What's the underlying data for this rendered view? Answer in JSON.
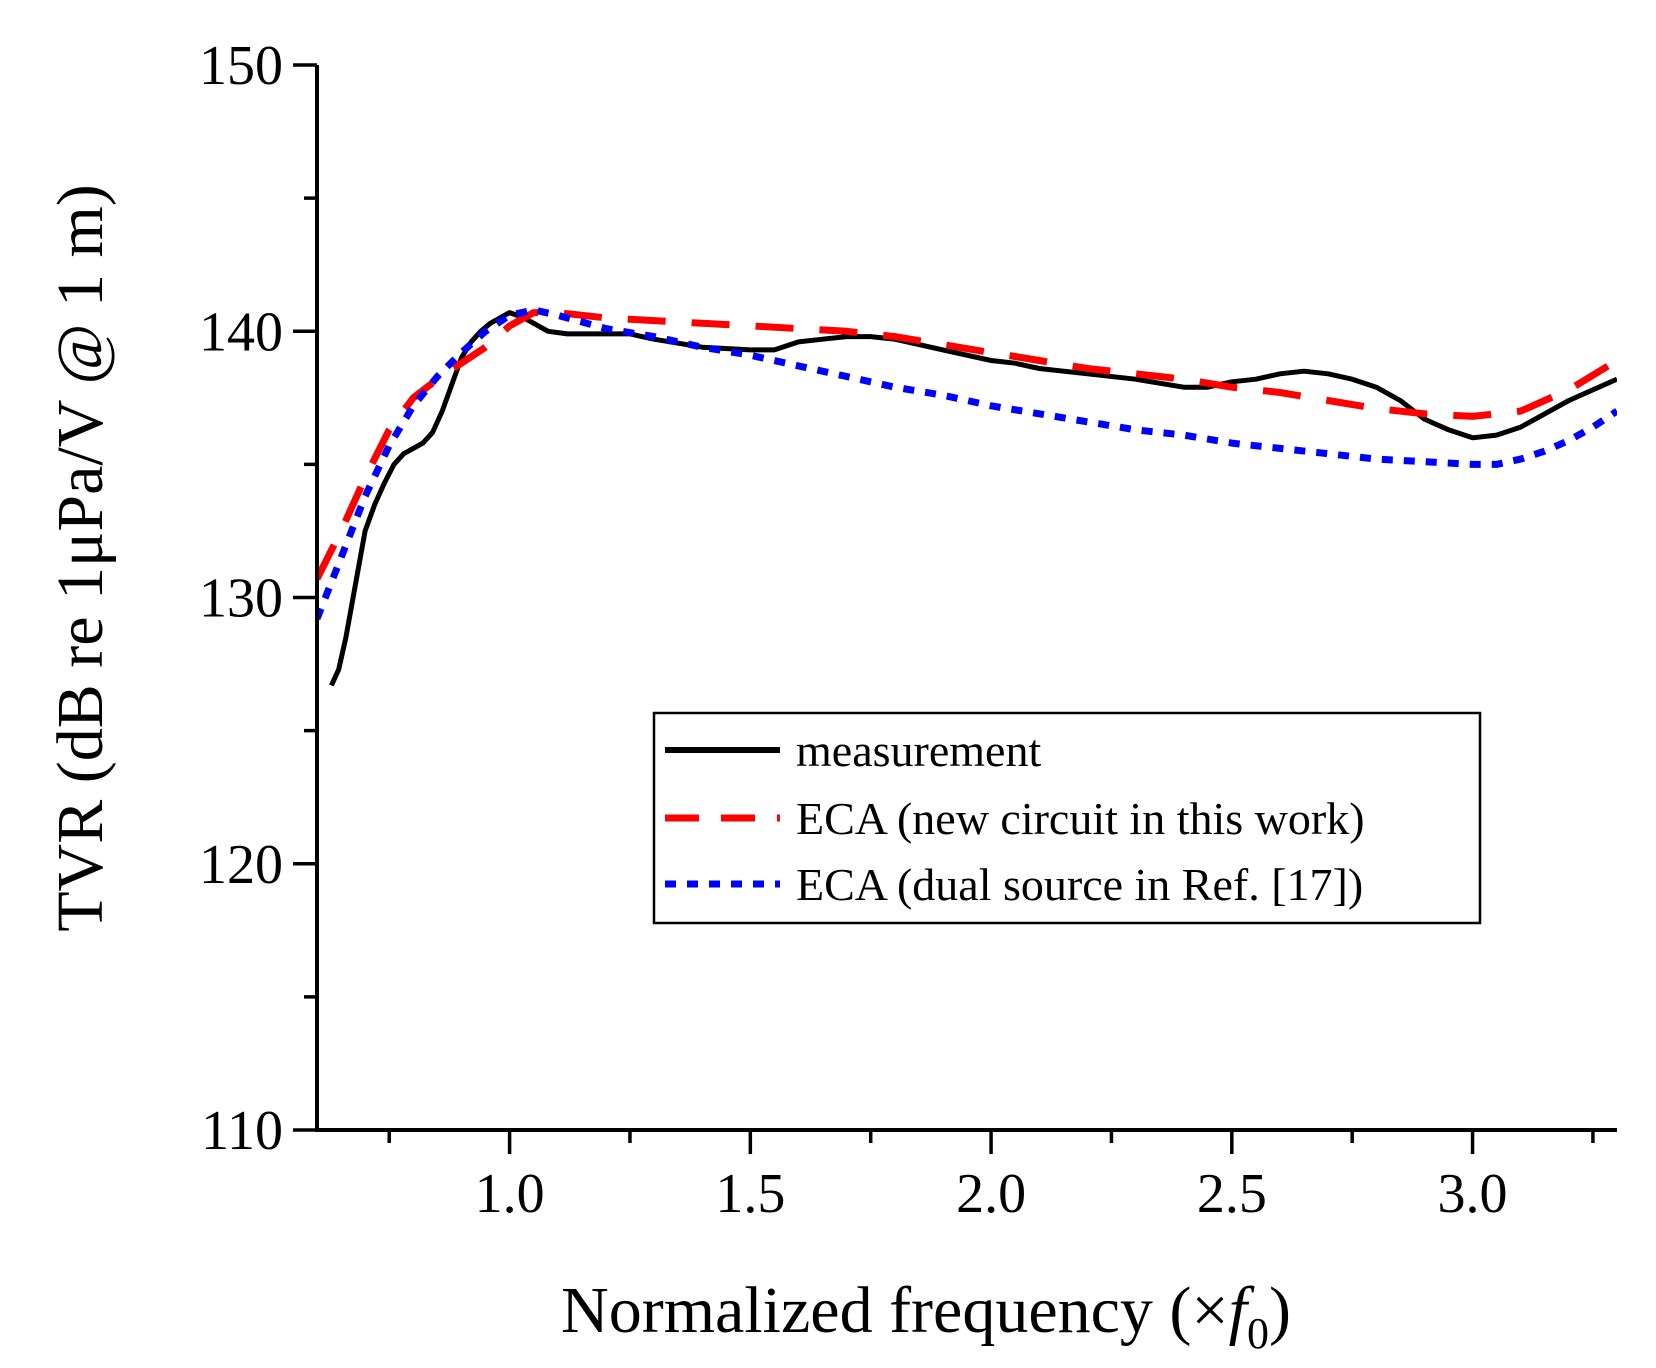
{
  "chart_data": {
    "type": "line",
    "title": "",
    "xlabel_main": "Normalized frequency (×",
    "xlabel_var": "f",
    "xlabel_sub": "0",
    "xlabel_close": ")",
    "ylabel": "TVR (dB re 1μPa/V @ 1 m)",
    "xlim": [
      0.6,
      3.3
    ],
    "ylim": [
      110,
      150
    ],
    "xticks": [
      1.0,
      1.5,
      2.0,
      2.5,
      3.0
    ],
    "xtick_labels": [
      "1.0",
      "1.5",
      "2.0",
      "2.5",
      "3.0"
    ],
    "yticks": [
      110,
      120,
      130,
      140,
      150
    ],
    "ytick_labels": [
      "110",
      "120",
      "130",
      "140",
      "150"
    ],
    "legend_position": "center-right",
    "series": [
      {
        "name": "measurement",
        "color": "#000000",
        "style": "solid",
        "x": [
          0.63,
          0.645,
          0.66,
          0.68,
          0.7,
          0.72,
          0.74,
          0.76,
          0.78,
          0.8,
          0.82,
          0.84,
          0.86,
          0.88,
          0.9,
          0.92,
          0.94,
          0.96,
          0.98,
          1.0,
          1.03,
          1.05,
          1.08,
          1.12,
          1.15,
          1.2,
          1.25,
          1.3,
          1.4,
          1.5,
          1.55,
          1.6,
          1.65,
          1.7,
          1.75,
          1.8,
          1.85,
          1.9,
          2.0,
          2.05,
          2.1,
          2.2,
          2.3,
          2.4,
          2.45,
          2.5,
          2.55,
          2.6,
          2.65,
          2.7,
          2.75,
          2.8,
          2.85,
          2.9,
          2.95,
          3.0,
          3.05,
          3.1,
          3.15,
          3.2,
          3.25,
          3.3
        ],
        "y": [
          126.7,
          127.3,
          128.5,
          130.5,
          132.5,
          133.5,
          134.3,
          135.0,
          135.4,
          135.6,
          135.8,
          136.2,
          137.0,
          138.0,
          139.0,
          139.6,
          140.0,
          140.3,
          140.5,
          140.7,
          140.5,
          140.3,
          140.0,
          139.9,
          139.9,
          139.9,
          139.9,
          139.7,
          139.4,
          139.3,
          139.3,
          139.6,
          139.7,
          139.8,
          139.8,
          139.7,
          139.5,
          139.3,
          138.9,
          138.8,
          138.6,
          138.4,
          138.2,
          137.9,
          137.9,
          138.1,
          138.2,
          138.4,
          138.5,
          138.4,
          138.2,
          137.9,
          137.4,
          136.7,
          136.3,
          136.0,
          136.1,
          136.4,
          136.9,
          137.4,
          137.8,
          138.2
        ]
      },
      {
        "name": "ECA (new circuit in this work)",
        "color": "#ff0000",
        "style": "dashed",
        "x": [
          0.6,
          0.65,
          0.7,
          0.75,
          0.8,
          0.85,
          0.9,
          0.95,
          1.0,
          1.05,
          1.1,
          1.2,
          1.3,
          1.4,
          1.5,
          1.6,
          1.7,
          1.8,
          1.9,
          2.0,
          2.1,
          2.2,
          2.3,
          2.4,
          2.5,
          2.6,
          2.7,
          2.8,
          2.9,
          3.0,
          3.1,
          3.2,
          3.3
        ],
        "y": [
          130.7,
          132.5,
          134.5,
          136.3,
          137.5,
          138.2,
          138.8,
          139.4,
          140.2,
          140.7,
          140.7,
          140.5,
          140.4,
          140.3,
          140.2,
          140.1,
          140.0,
          139.8,
          139.5,
          139.2,
          138.9,
          138.6,
          138.4,
          138.2,
          137.9,
          137.7,
          137.4,
          137.1,
          136.9,
          136.8,
          137.0,
          137.8,
          138.9
        ]
      },
      {
        "name": "ECA (dual source in Ref. [17])",
        "color": "#0000ff",
        "style": "dotted",
        "x": [
          0.6,
          0.65,
          0.7,
          0.75,
          0.8,
          0.85,
          0.9,
          0.95,
          1.0,
          1.05,
          1.1,
          1.2,
          1.3,
          1.4,
          1.5,
          1.6,
          1.7,
          1.8,
          1.9,
          2.0,
          2.1,
          2.2,
          2.3,
          2.4,
          2.5,
          2.6,
          2.7,
          2.8,
          2.9,
          3.0,
          3.05,
          3.1,
          3.15,
          3.2,
          3.25,
          3.3
        ],
        "y": [
          129.2,
          131.5,
          133.8,
          135.7,
          137.2,
          138.3,
          139.2,
          140.0,
          140.6,
          140.8,
          140.6,
          140.1,
          139.8,
          139.4,
          139.1,
          138.7,
          138.3,
          137.9,
          137.6,
          137.2,
          136.9,
          136.6,
          136.3,
          136.1,
          135.8,
          135.6,
          135.4,
          135.2,
          135.1,
          135.0,
          135.0,
          135.2,
          135.5,
          135.9,
          136.4,
          137.0
        ]
      }
    ]
  }
}
